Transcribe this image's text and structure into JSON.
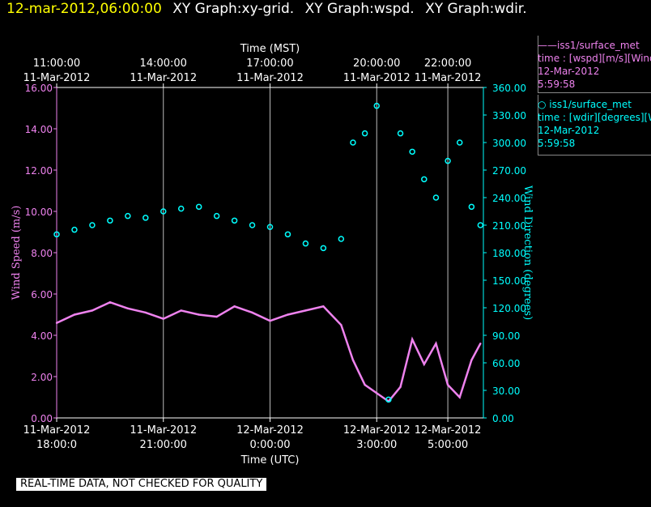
{
  "header": {
    "datetime": "12-mar-2012,06:00:00",
    "titles": [
      "XY Graph:xy-grid.",
      "XY Graph:wspd.",
      "XY Graph:wdir."
    ]
  },
  "legend": [
    {
      "line1": "——iss1/surface_met",
      "line2": "time : [wspd][m/s][Wind",
      "line3": "12-Mar-2012",
      "line4": "5:59:58",
      "color": "#ee82ee"
    },
    {
      "line1": "○  iss1/surface_met",
      "line2": "time : [wdir][degrees][W",
      "line3": "12-Mar-2012",
      "line4": "5:59:58",
      "color": "#00ffff"
    }
  ],
  "disclaimer": "REAL-TIME DATA, NOT CHECKED FOR QUALITY",
  "chart_data": {
    "type": "line",
    "title": "",
    "xlabel_bottom": "Time (UTC)",
    "xlabel_top": "Time (MST)",
    "ylabel_left": "Wind Speed (m/s)",
    "ylabel_right": "Wind Direction (degrees)",
    "x_range_hours_utc": [
      "2012-03-11 18:00",
      "2012-03-12 06:00"
    ],
    "ylim_left": [
      0,
      16
    ],
    "ylim_right": [
      0,
      360
    ],
    "grid": "vertical",
    "bottom_ticks": [
      {
        "t": "2012-03-11 18:00",
        "line1": "11-Mar-2012",
        "line2": "18:00:0"
      },
      {
        "t": "2012-03-11 21:00",
        "line1": "11-Mar-2012",
        "line2": "21:00:00"
      },
      {
        "t": "2012-03-12 00:00",
        "line1": "12-Mar-2012",
        "line2": "0:00:00"
      },
      {
        "t": "2012-03-12 03:00",
        "line1": "12-Mar-2012",
        "line2": "3:00:00"
      },
      {
        "t": "2012-03-12 05:00",
        "line1": "12-Mar-2012",
        "line2": "5:00:00"
      }
    ],
    "top_ticks": [
      {
        "t": "2012-03-11 18:00",
        "line1": "11:00:00",
        "line2": "11-Mar-2012"
      },
      {
        "t": "2012-03-11 21:00",
        "line1": "14:00:00",
        "line2": "11-Mar-2012"
      },
      {
        "t": "2012-03-12 00:00",
        "line1": "17:00:00",
        "line2": "11-Mar-2012"
      },
      {
        "t": "2012-03-12 03:00",
        "line1": "20:00:00",
        "line2": "11-Mar-2012"
      },
      {
        "t": "2012-03-12 05:00",
        "line1": "22:00:00",
        "line2": "11-Mar-2012"
      }
    ],
    "left_ticks": [
      "0.00",
      "2.00",
      "4.00",
      "6.00",
      "8.00",
      "10.00",
      "12.00",
      "14.00",
      "16.00"
    ],
    "right_ticks": [
      "0.00",
      "30.00",
      "60.00",
      "90.00",
      "120.00",
      "150.00",
      "180.00",
      "210.00",
      "240.00",
      "270.00",
      "300.00",
      "330.00",
      "360.00"
    ],
    "series": [
      {
        "name": "iss1/surface_met time : [wspd][m/s]",
        "axis": "left",
        "style": "line",
        "color": "#ee82ee",
        "x": [
          "2012-03-11 18:00",
          "2012-03-11 18:30",
          "2012-03-11 19:00",
          "2012-03-11 19:30",
          "2012-03-11 20:00",
          "2012-03-11 20:30",
          "2012-03-11 21:00",
          "2012-03-11 21:30",
          "2012-03-11 22:00",
          "2012-03-11 22:30",
          "2012-03-11 23:00",
          "2012-03-11 23:30",
          "2012-03-12 00:00",
          "2012-03-12 00:30",
          "2012-03-12 01:00",
          "2012-03-12 01:30",
          "2012-03-12 02:00",
          "2012-03-12 02:20",
          "2012-03-12 02:40",
          "2012-03-12 03:00",
          "2012-03-12 03:20",
          "2012-03-12 03:40",
          "2012-03-12 04:00",
          "2012-03-12 04:20",
          "2012-03-12 04:40",
          "2012-03-12 05:00",
          "2012-03-12 05:20",
          "2012-03-12 05:40",
          "2012-03-12 05:55"
        ],
        "y": [
          4.6,
          5.0,
          5.2,
          5.6,
          5.3,
          5.1,
          4.8,
          5.2,
          5.0,
          4.9,
          5.4,
          5.1,
          4.7,
          5.0,
          5.2,
          5.4,
          4.5,
          2.8,
          1.6,
          1.2,
          0.8,
          1.5,
          3.8,
          2.6,
          3.6,
          1.6,
          1.0,
          2.8,
          3.6
        ]
      },
      {
        "name": "iss1/surface_met time : [wdir][degrees]",
        "axis": "right",
        "style": "points",
        "color": "#00ffff",
        "x": [
          "2012-03-11 18:00",
          "2012-03-11 18:30",
          "2012-03-11 19:00",
          "2012-03-11 19:30",
          "2012-03-11 20:00",
          "2012-03-11 20:30",
          "2012-03-11 21:00",
          "2012-03-11 21:30",
          "2012-03-11 22:00",
          "2012-03-11 22:30",
          "2012-03-11 23:00",
          "2012-03-11 23:30",
          "2012-03-12 00:00",
          "2012-03-12 00:30",
          "2012-03-12 01:00",
          "2012-03-12 01:30",
          "2012-03-12 02:00",
          "2012-03-12 02:20",
          "2012-03-12 02:40",
          "2012-03-12 03:00",
          "2012-03-12 03:20",
          "2012-03-12 03:40",
          "2012-03-12 04:00",
          "2012-03-12 04:20",
          "2012-03-12 04:40",
          "2012-03-12 05:00",
          "2012-03-12 05:20",
          "2012-03-12 05:40",
          "2012-03-12 05:55"
        ],
        "y": [
          200,
          205,
          210,
          215,
          220,
          218,
          225,
          228,
          230,
          220,
          215,
          210,
          208,
          200,
          190,
          185,
          195,
          300,
          310,
          340,
          20,
          310,
          290,
          260,
          240,
          280,
          300,
          230,
          210
        ]
      }
    ]
  }
}
